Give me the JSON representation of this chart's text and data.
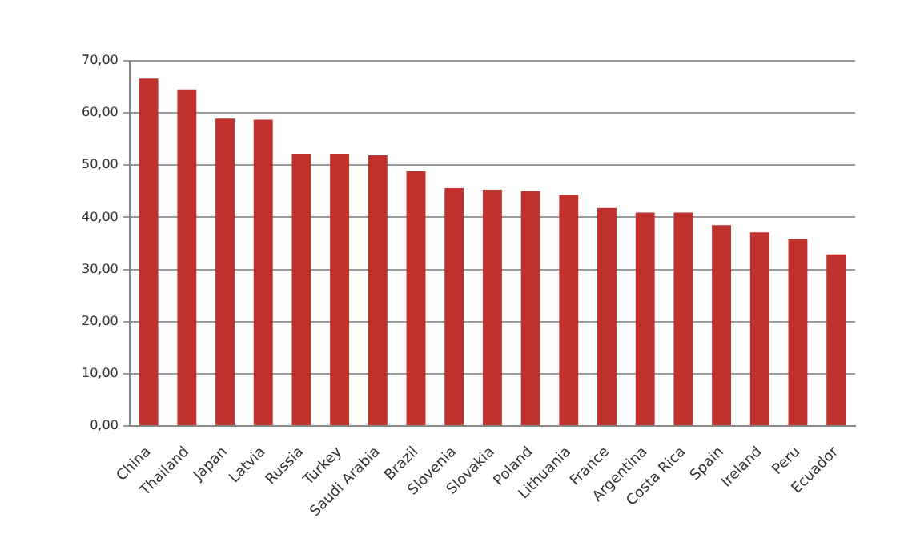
{
  "chart_data": {
    "type": "bar",
    "categories": [
      "China",
      "Thailand",
      "Japan",
      "Latvia",
      "Russia",
      "Turkey",
      "Saudi Arabia",
      "Brazil",
      "Slovenia",
      "Slovakia",
      "Poland",
      "Lithuania",
      "France",
      "Argentina",
      "Costa Rica",
      "Spain",
      "Ireland",
      "Peru",
      "Ecuador"
    ],
    "values": [
      66.6,
      64.5,
      58.9,
      58.7,
      52.2,
      52.2,
      51.9,
      48.8,
      45.6,
      45.3,
      45.0,
      44.3,
      41.8,
      40.9,
      40.9,
      38.5,
      37.1,
      35.8,
      32.9
    ],
    "color": "#c0302c",
    "ylim": [
      0,
      70
    ],
    "yticks": [
      {
        "value": 0,
        "label": "0,00"
      },
      {
        "value": 10,
        "label": "10,00"
      },
      {
        "value": 20,
        "label": "20,00"
      },
      {
        "value": 30,
        "label": "30,00"
      },
      {
        "value": 40,
        "label": "40,00"
      },
      {
        "value": 50,
        "label": "50,00"
      },
      {
        "value": 60,
        "label": "60,00"
      },
      {
        "value": 70,
        "label": "70,00"
      }
    ],
    "grid": "y",
    "legend": false
  }
}
